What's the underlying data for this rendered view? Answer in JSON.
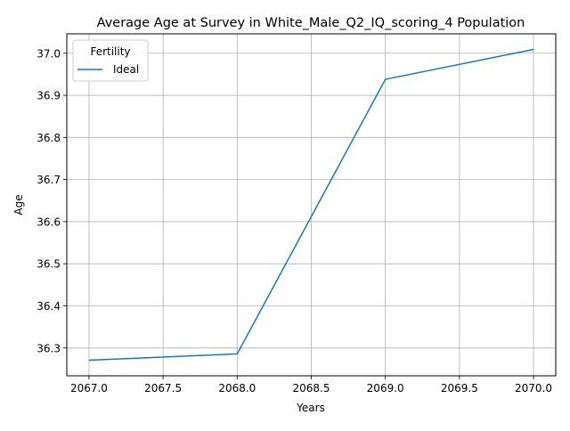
{
  "chart_data": {
    "type": "line",
    "title": "Average Age at Survey in White_Male_Q2_IQ_scoring_4 Population",
    "xlabel": "Years",
    "ylabel": "Age",
    "x": [
      2067,
      2068,
      2069,
      2070
    ],
    "series": [
      {
        "name": "Ideal",
        "values": [
          36.271,
          36.286,
          36.938,
          37.009
        ],
        "color": "#1f77b4"
      }
    ],
    "xlim": [
      2066.85,
      2070.15
    ],
    "ylim": [
      36.234,
      37.046
    ],
    "xticks": [
      "2067.0",
      "2067.5",
      "2068.0",
      "2068.5",
      "2069.0",
      "2069.5",
      "2070.0"
    ],
    "yticks": [
      "36.3",
      "36.4",
      "36.5",
      "36.6",
      "36.7",
      "36.8",
      "36.9",
      "37.0"
    ],
    "grid": true,
    "legend": {
      "title": "Fertility",
      "placement": "top-left"
    }
  }
}
